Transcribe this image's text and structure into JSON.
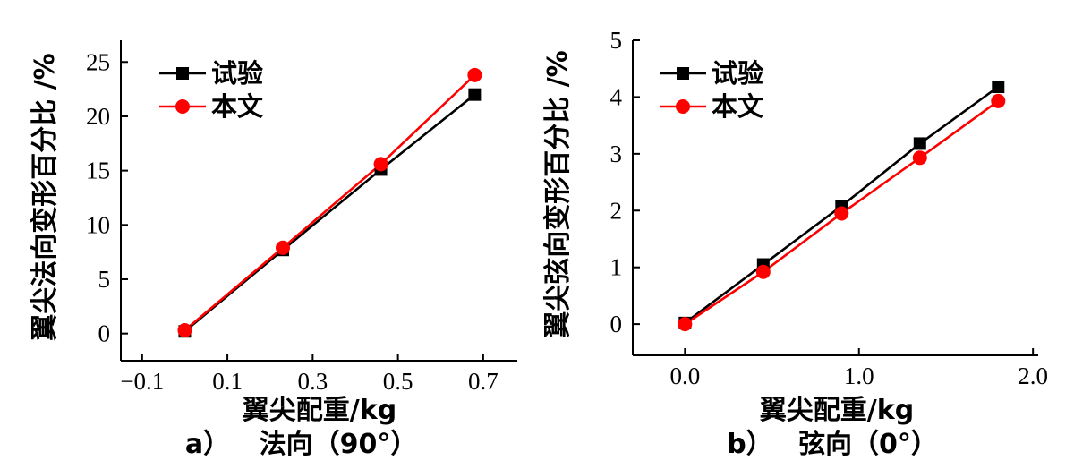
{
  "chart_data": [
    {
      "type": "line",
      "caption_letter": "a）",
      "caption_text": "法向（90°）",
      "xlabel": "翼尖配重/kg",
      "ylabel": "翼尖法向变形百分比 /%",
      "xlim": [
        -0.15,
        0.78
      ],
      "ylim": [
        -2.5,
        27
      ],
      "xticks": [
        -0.1,
        0.1,
        0.3,
        0.5,
        0.7
      ],
      "xtick_labels": [
        "−0.1",
        "0.1",
        "0.3",
        "0.5",
        "0.7"
      ],
      "yticks": [
        0,
        5,
        10,
        15,
        20,
        25
      ],
      "ytick_labels": [
        "0",
        "5",
        "10",
        "15",
        "20",
        "25"
      ],
      "legend_position": "top-left",
      "series": [
        {
          "name": "试验",
          "color": "#000000",
          "marker": "square",
          "x": [
            0.0,
            0.23,
            0.46,
            0.68
          ],
          "y": [
            0.2,
            7.7,
            15.1,
            22.0
          ]
        },
        {
          "name": "本文",
          "color": "#ff0000",
          "marker": "circle",
          "x": [
            0.0,
            0.23,
            0.46,
            0.68
          ],
          "y": [
            0.3,
            7.9,
            15.6,
            23.8
          ]
        }
      ]
    },
    {
      "type": "line",
      "caption_letter": "b）",
      "caption_text": "弦向（0°）",
      "xlabel": "翼尖配重/kg",
      "ylabel": "翼尖弦向变形百分比 /%",
      "xlim": [
        -0.3,
        2.03
      ],
      "ylim": [
        -0.55,
        5.0
      ],
      "xticks": [
        0.0,
        1.0,
        2.0
      ],
      "xtick_labels": [
        "0.0",
        "1.0",
        "2.0"
      ],
      "yticks": [
        0,
        1,
        2,
        3,
        4,
        5
      ],
      "ytick_labels": [
        "0",
        "1",
        "2",
        "3",
        "4",
        "5"
      ],
      "legend_position": "top-left",
      "series": [
        {
          "name": "试验",
          "color": "#000000",
          "marker": "square",
          "x": [
            0.0,
            0.45,
            0.9,
            1.35,
            1.8
          ],
          "y": [
            0.02,
            1.05,
            2.08,
            3.18,
            4.18
          ]
        },
        {
          "name": "本文",
          "color": "#ff0000",
          "marker": "circle",
          "x": [
            0.0,
            0.45,
            0.9,
            1.35,
            1.8
          ],
          "y": [
            0.0,
            0.92,
            1.95,
            2.93,
            3.93
          ]
        }
      ]
    }
  ]
}
